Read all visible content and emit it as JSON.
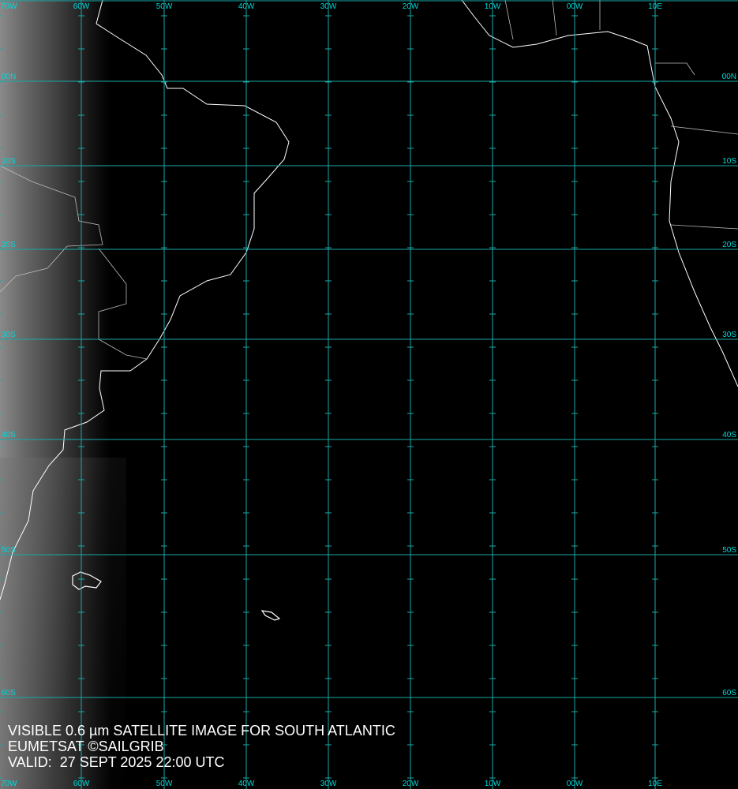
{
  "caption": {
    "line1": "VISIBLE 0.6 µm SATELLITE IMAGE FOR SOUTH ATLANTIC",
    "line2": "EUMETSAT ©SAILGRIB",
    "line3": "VALID:  27 SEPT 2025 22:00 UTC"
  },
  "longitudes": [
    "70W",
    "60W",
    "50W",
    "40W",
    "30W",
    "20W",
    "10W",
    "00W",
    "10E"
  ],
  "latitudes": [
    "00N",
    "10S",
    "20S",
    "30S",
    "40S",
    "50S",
    "60S"
  ],
  "colors": {
    "grid": "#1aa8a8",
    "labels": "#00d8d8",
    "coastline": "#ffffff",
    "background": "#000000"
  }
}
